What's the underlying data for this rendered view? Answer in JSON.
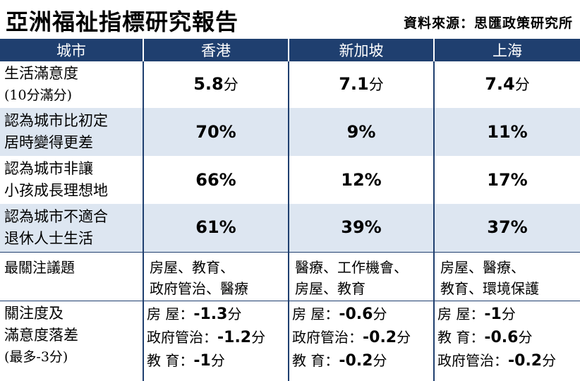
{
  "title": "亞洲福祉指標研究報告",
  "source": "資料來源：思匯政策研究所",
  "headers": [
    "城市",
    "香港",
    "新加坡",
    "上海"
  ],
  "rows": [
    {
      "label1": "生活滿意度",
      "label2": "(10分滿分)",
      "values": [
        "5.8",
        "7.1",
        "7.4"
      ],
      "unit": "分"
    },
    {
      "label1": "認為城市比初定",
      "label2": "居時變得更差",
      "values": [
        "70%",
        "9%",
        "11%"
      ]
    },
    {
      "label1": "認為城市非讓",
      "label2": "小孩成長理想地",
      "values": [
        "66%",
        "12%",
        "17%"
      ]
    },
    {
      "label1": "認為城市不適合",
      "label2": "退休人士生活",
      "values": [
        "61%",
        "39%",
        "37%"
      ]
    }
  ],
  "issues": {
    "label": "最關注議題",
    "cities": [
      [
        "房屋、教育、",
        "政府管治、醫療"
      ],
      [
        "醫療、工作機會、",
        "房屋、教育"
      ],
      [
        "房屋、醫療、",
        "教育、環境保護"
      ]
    ]
  },
  "gap": {
    "label1": "關注度及",
    "label2": "滿意度落差",
    "label3": "(最多-3分)",
    "unit": "分",
    "cities": [
      [
        {
          "k": "房 屋：",
          "v": "-1.3"
        },
        {
          "k": "政府管治：",
          "v": "-1.2"
        },
        {
          "k": "教 育：",
          "v": "-1"
        }
      ],
      [
        {
          "k": "房 屋：",
          "v": "-0.6"
        },
        {
          "k": "政府管治：",
          "v": "-0.2"
        },
        {
          "k": "教 育：",
          "v": "-0.2"
        }
      ],
      [
        {
          "k": "房 屋：",
          "v": "-1"
        },
        {
          "k": "教 育：",
          "v": "-0.6"
        },
        {
          "k": "政府管治：",
          "v": "-0.2"
        }
      ]
    ]
  }
}
